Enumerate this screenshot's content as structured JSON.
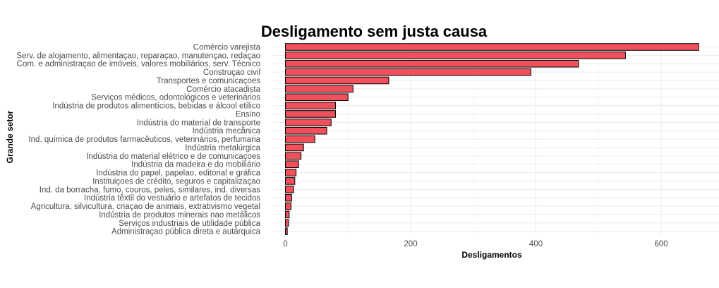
{
  "chart_data": {
    "type": "bar",
    "orientation": "horizontal",
    "title": "Desligamento sem justa causa",
    "xlabel": "Desligamentos",
    "ylabel": "Grande setor",
    "xlim": [
      0,
      690
    ],
    "xticks": [
      0,
      200,
      400,
      600
    ],
    "grid": true,
    "bar_color": "#f0505a",
    "bar_edge_color": "#000000",
    "categories": [
      "Comércio varejista",
      "Serv. de alojamento, alimentaçao, reparaçao, manutençao, redaçao",
      "Com. e administraçao de imóveis, valores mobiliários, serv. Técnico",
      "Construçao civil",
      "Transportes e comunicaçoes",
      "Comércio atacadista",
      "Serviços médicos, odontológicos e veterinários",
      "Indústria de produtos alimentícios, bebidas e álcool etílico",
      "Ensino",
      "Indústria do material de transporte",
      "Indústria mecânica",
      "Ind. química de produtos farmacêuticos, veterinários, perfumaria",
      "Indústria metalúrgica",
      "Indústria do material elétrico e de comunicaçoes",
      "Indústria da madeira e do mobiliário",
      "Indústria do papel, papelao, editorial e gráfica",
      "Instituiçoes de crédito, seguros e capitalizaçao",
      "Ind. da borracha, fumo, couros, peles, similares, ind. diversas",
      "Indústria têxtil do vestuário e artefatos de tecidos",
      "Agricultura, silvicultura, criaçao de animais, extrativismo vegetal",
      "Indústria de produtos minerais nao metálicos",
      "Serviços industriais de utilidade pública",
      "Administraçao pública direta e autárquica"
    ],
    "values": [
      660,
      543,
      468,
      392,
      165,
      108,
      100,
      80,
      80,
      73,
      66,
      47,
      29,
      25,
      21,
      17,
      15,
      13,
      10,
      9,
      6,
      5,
      3
    ]
  }
}
